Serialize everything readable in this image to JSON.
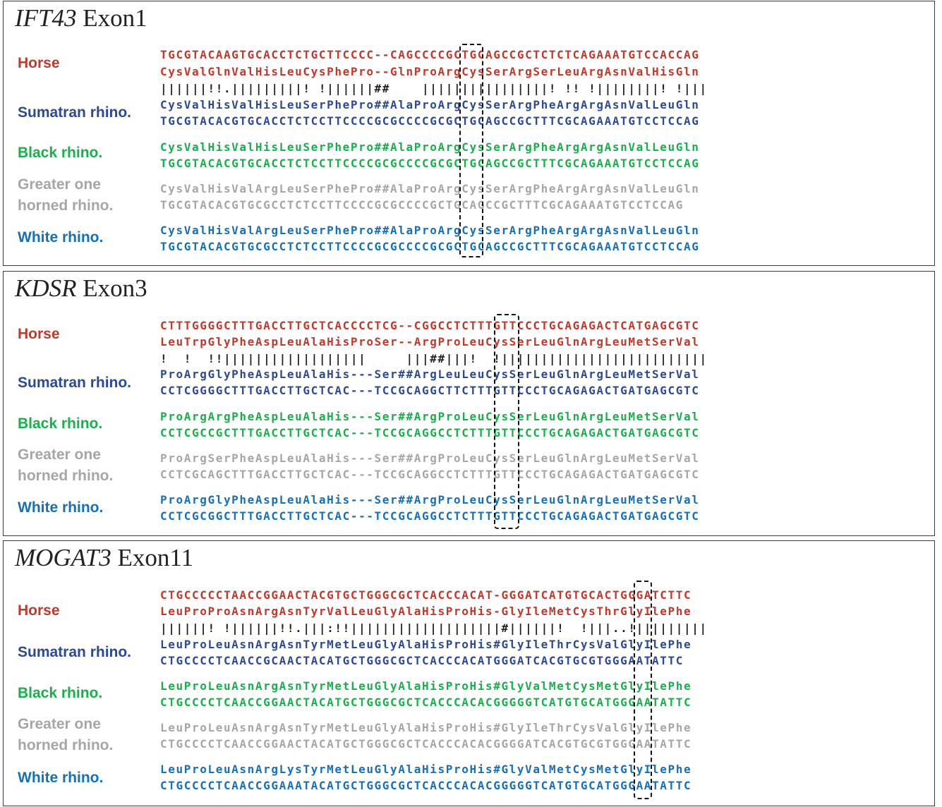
{
  "colors": {
    "horse": "#c0392b",
    "sumatran": "#2c4a94",
    "black": "#18b04a",
    "greater": "#a6a6a6",
    "white": "#1670b8",
    "match": "#222222"
  },
  "panels": [
    {
      "gene": "IFT43",
      "exon": "Exon1",
      "labels": {
        "horse": "Horse",
        "sumatran": "Sumatran rhino.",
        "black": "Black rhino.",
        "greater_1": "Greater one",
        "greater_2": "horned rhino.",
        "white": "White rhino."
      },
      "horse_dna": "TGCGTACAAGTGCACCTCTGCTTCCCC--CAGCCCCGCTGCAGCCGCTCTCTCAGAAATGTCCACCAG",
      "horse_aa": "CysValGlnValHisLeuCysPhePro--GlnProArgCysSerArgSerLeuArgAsnValHisGln",
      "match": "||||||!!.|||||||||! !||||||##    ||||||||||||||||! !! !||||||||! !|||",
      "sumatran_aa": "CysValHisValHisLeuSerPhePro##AlaProArgCysSerArgPheArgArgAsnValLeuGln",
      "sumatran_dna": "TGCGTACACGTGCACCTCTCCTTCCCCGCGCCCCGCGCTGCAGCCGCTTTCGCAGAAATGTCCTCCAG",
      "black_aa": "CysValHisValHisLeuSerPhePro##AlaProArgCysSerArgPheArgArgAsnValLeuGln",
      "black_dna": "TGCGTACACGTGCACCTCTCCTTCCCCGCGCCCCGCGCTGCAGCCGCTTTCGCAGAAATGTCCTCCAG",
      "greater_aa": "CysValHisValArgLeuSerPhePro##AlaProArgCysSerArgPheArgArgAsnValLeuGln",
      "greater_dna": "TGCGTACACGTGCGCCTCTCCTTCCCCGCGCCCCGCTGCAGCCGCTTTCGCAGAAATGTCCTCCAG",
      "white_aa": "CysValHisValArgLeuSerPhePro##AlaProArgCysSerArgPheArgArgAsnValLeuGln",
      "white_dna": "TGCGTACACGTGCGCCTCTCCTTCCCCGCGCCCCGCGCTGCAGCCGCTTTCGCAGAAATGTCCTCCAG"
    },
    {
      "gene": "KDSR",
      "exon": "Exon3",
      "labels": {
        "horse": "Horse",
        "sumatran": "Sumatran rhino.",
        "black": "Black rhino.",
        "greater_1": "Greater one",
        "greater_2": "horned rhino.",
        "white": "White rhino."
      },
      "horse_dna": "CTTTGGGGCTTTGACCTTGCTCACCCCTCG--CGGCCTCTTTGTTCCCTGCAGAGACTCATGAGCGTC",
      "horse_aa": "LeuTrpGlyPheAspLeuAlaHisProSer--ArgProLeuCysSerLeuGlnArgLeuMetSerVal",
      "match": "!  !  !!||||||||||||||||||     |||##|||!  !||||||||||||||||||||||||||",
      "sumatran_aa": "ProArgGlyPheAspLeuAlaHis---Ser##ArgLeuLeuCysSerLeuGlnArgLeuMetSerVal",
      "sumatran_dna": "CCTCGGGGCTTTGACCTTGCTCAC---TCCGCAGGCTTCTTTGTTCCCTGCAGAGACTGATGAGCGTC",
      "black_aa": "ProArgArgPheAspLeuAlaHis---Ser##ArgProLeuCysSerLeuGlnArgLeuMetSerVal",
      "black_dna": "CCTCGCCGCTTTGACCTTGCTCAC---TCCGCAGGCCTCTTTGTTCCCTGCAGAGACTGATGAGCGTC",
      "greater_aa": "ProArgSerPheAspLeuAlaHis---Ser##ArgProLeuCysSerLeuGlnArgLeuMetSerVal",
      "greater_dna": "CCTCGCAGCTTTGACCTTGCTCAC---TCCGCAGGCCTCTTTGTTCCCTGCAGAGACTGATGAGCGTC",
      "white_aa": "ProArgGlyPheAspLeuAlaHis---Ser##ArgProLeuCysSerLeuGlnArgLeuMetSerVal",
      "white_dna": "CCTCGCGGCTTTGACCTTGCTCAC---TCCGCAGGCCTCTTTGTTCCCTGCAGAGACTGATGAGCGTC"
    },
    {
      "gene": "MOGAT3",
      "exon": "Exon11",
      "labels": {
        "horse": "Horse",
        "sumatran": "Sumatran rhino.",
        "black": "Black rhino.",
        "greater_1": "Greater one",
        "greater_2": "horned rhino.",
        "white": "White rhino."
      },
      "horse_dna": "CTGCCCCCTAACCGGAACTACGTGCTGGGCGCTCACCCACAT-GGGATCATGTGCACTGGGATCTTC",
      "horse_aa": "LeuProProAsnArgAsnTyrValLeuGlyAlaHisProHis-GlyIleMetCysThrGlyIlePhe",
      "match": "||||||! !||||||!!.|||:!!|||||||||||||||||||#||||||!  !|||..!|||||||||",
      "sumatran_aa": "LeuProLeuAsnArgAsnTyrMetLeuGlyAlaHisProHis#GlyIleThrCysValGlyIlePhe",
      "sumatran_dna": "CTGCCCCTCAACCGCAACTACATGCTGGGCGCTCACCCACATGGGATCACGTGCGTGGGAATATTC",
      "black_aa": "LeuProLeuAsnArgAsnTyrMetLeuGlyAlaHisProHis#GlyValMetCysMetGlyIlePhe",
      "black_dna": "CTGCCCCTCAACCGGAACTACATGCTGGGCGCTCACCCACACGGGGGTCATGTGCATGGGAATATTC",
      "greater_aa": "LeuProLeuAsnArgAsnTyrMetLeuGlyAlaHisProHis#GlyIleThrCysValGlyIlePhe",
      "greater_dna": "CTGCCCCTCAACCGGAACTACATGCTGGGCGCTCACCCACACGGGGATCACGTGCGTGGGAATATTC",
      "white_aa": "LeuProLeuAsnArgLysTyrMetLeuGlyAlaHisProHis#GlyValMetCysMetGlyIlePhe",
      "white_dna": "CTGCCCCTCAACCGGAAATACATGCTGGGCGCTCACCCACACGGGGGTCATGTGCATGGGAATATTC"
    }
  ]
}
